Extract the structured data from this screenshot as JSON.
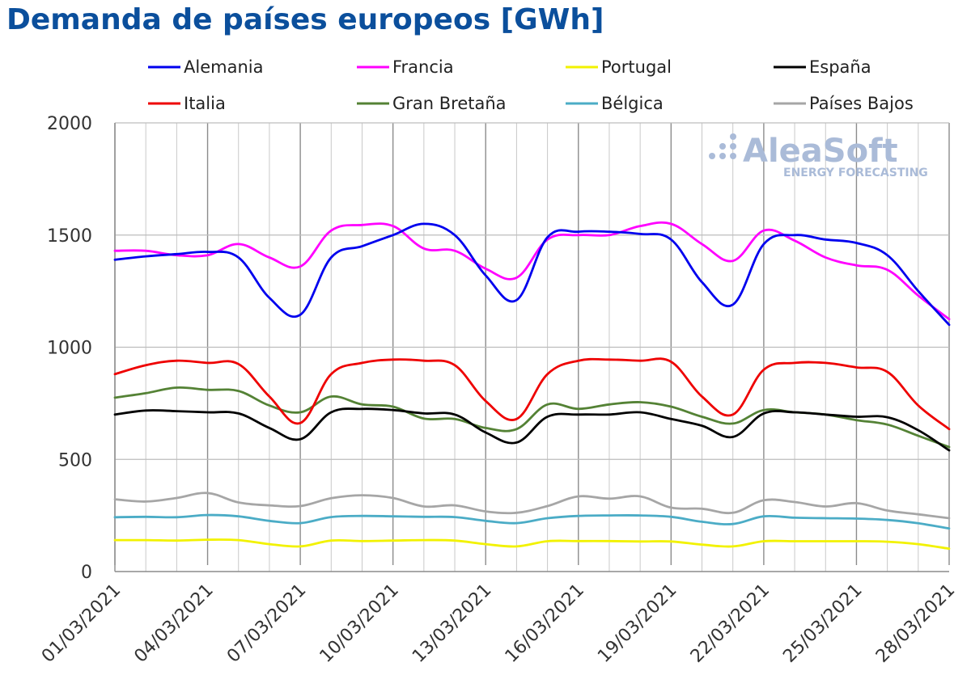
{
  "chart_data": {
    "type": "line",
    "title": "Demanda de países europeos [GWh]",
    "xlabel": "",
    "ylabel": "",
    "ylim": [
      0,
      2000
    ],
    "yticks": [
      0,
      500,
      1000,
      1500,
      2000
    ],
    "x": [
      "01/03/2021",
      "02/03/2021",
      "03/03/2021",
      "04/03/2021",
      "05/03/2021",
      "06/03/2021",
      "07/03/2021",
      "08/03/2021",
      "09/03/2021",
      "10/03/2021",
      "11/03/2021",
      "12/03/2021",
      "13/03/2021",
      "14/03/2021",
      "15/03/2021",
      "16/03/2021",
      "17/03/2021",
      "18/03/2021",
      "19/03/2021",
      "20/03/2021",
      "21/03/2021",
      "22/03/2021",
      "23/03/2021",
      "24/03/2021",
      "25/03/2021",
      "26/03/2021",
      "27/03/2021",
      "28/03/2021"
    ],
    "xtick_labels": [
      "01/03/2021",
      "04/03/2021",
      "07/03/2021",
      "10/03/2021",
      "13/03/2021",
      "16/03/2021",
      "19/03/2021",
      "22/03/2021",
      "25/03/2021",
      "28/03/2021"
    ],
    "grid": true,
    "legend_position": "top",
    "series": [
      {
        "name": "Alemania",
        "color": "#0000ee",
        "values": [
          1390,
          1405,
          1415,
          1425,
          1400,
          1220,
          1145,
          1400,
          1450,
          1500,
          1550,
          1500,
          1320,
          1210,
          1490,
          1515,
          1515,
          1505,
          1480,
          1290,
          1190,
          1460,
          1500,
          1480,
          1465,
          1410,
          1250,
          1100
        ]
      },
      {
        "name": "Francia",
        "color": "#ff00ff",
        "values": [
          1430,
          1430,
          1410,
          1410,
          1460,
          1400,
          1360,
          1520,
          1545,
          1540,
          1440,
          1430,
          1350,
          1310,
          1480,
          1500,
          1500,
          1540,
          1550,
          1460,
          1385,
          1520,
          1475,
          1400,
          1365,
          1345,
          1230,
          1125
        ]
      },
      {
        "name": "Portugal",
        "color": "#f2f200",
        "values": [
          140,
          140,
          138,
          142,
          140,
          122,
          112,
          138,
          136,
          138,
          140,
          138,
          122,
          112,
          135,
          136,
          136,
          134,
          134,
          120,
          112,
          135,
          135,
          135,
          135,
          133,
          122,
          102
        ]
      },
      {
        "name": "España",
        "color": "#000000",
        "values": [
          700,
          718,
          715,
          710,
          705,
          640,
          590,
          710,
          725,
          720,
          705,
          700,
          620,
          575,
          690,
          700,
          700,
          710,
          680,
          650,
          600,
          705,
          710,
          700,
          690,
          688,
          630,
          540
        ]
      },
      {
        "name": "Italia",
        "color": "#ee0000",
        "values": [
          880,
          920,
          940,
          930,
          925,
          780,
          662,
          880,
          930,
          945,
          940,
          920,
          760,
          680,
          880,
          940,
          945,
          940,
          935,
          780,
          700,
          900,
          930,
          930,
          910,
          890,
          740,
          635
        ]
      },
      {
        "name": "Gran Bretaña",
        "color": "#548235",
        "values": [
          775,
          795,
          820,
          810,
          805,
          740,
          710,
          780,
          745,
          735,
          682,
          680,
          640,
          635,
          745,
          725,
          745,
          755,
          735,
          690,
          660,
          720,
          710,
          700,
          675,
          655,
          605,
          555
        ]
      },
      {
        "name": "Bélgica",
        "color": "#4bacc6",
        "values": [
          242,
          244,
          242,
          252,
          246,
          226,
          216,
          243,
          248,
          246,
          244,
          243,
          226,
          216,
          238,
          248,
          250,
          250,
          244,
          222,
          212,
          246,
          240,
          238,
          236,
          230,
          215,
          192
        ]
      },
      {
        "name": "Países Bajos",
        "color": "#a6a6a6",
        "values": [
          322,
          312,
          328,
          350,
          308,
          295,
          292,
          327,
          340,
          328,
          290,
          295,
          268,
          262,
          292,
          335,
          325,
          335,
          285,
          280,
          262,
          318,
          310,
          290,
          305,
          272,
          255,
          238
        ]
      }
    ]
  },
  "watermark": {
    "brand": "AleaSoft",
    "subtitle": "ENERGY FORECASTING"
  }
}
